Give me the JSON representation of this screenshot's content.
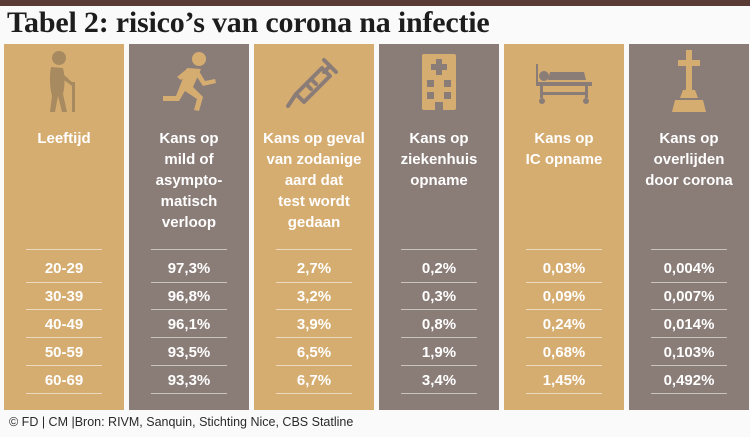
{
  "title": "Tabel 2: risico’s van corona na infectie",
  "source": "© FD | CM |Bron: RIVM, Sanquin, Stichting Nice, CBS Statline",
  "colors": {
    "gold": "#d6ad71",
    "grey": "#8a7c77",
    "top_bar": "#5a3a35"
  },
  "columns": [
    {
      "icon": "elderly-person-icon",
      "header": "Leeftijd",
      "values": [
        "20-29",
        "30-39",
        "40-49",
        "50-59",
        "60-69"
      ]
    },
    {
      "icon": "running-person-icon",
      "header": "Kans op\nmild of\nasympto-\nmatisch\nverloop",
      "values": [
        "97,3%",
        "96,8%",
        "96,1%",
        "93,5%",
        "93,3%"
      ]
    },
    {
      "icon": "syringe-icon",
      "header": "Kans op geval\nvan zodanige\naard dat\ntest wordt\ngedaan",
      "values": [
        "2,7%",
        "3,2%",
        "3,9%",
        "6,5%",
        "6,7%"
      ]
    },
    {
      "icon": "hospital-icon",
      "header": "Kans op\nziekenhuis\nopname",
      "values": [
        "0,2%",
        "0,3%",
        "0,8%",
        "1,9%",
        "3,4%"
      ]
    },
    {
      "icon": "hospital-bed-icon",
      "header": "Kans op\nIC opname",
      "values": [
        "0,03%",
        "0,09%",
        "0,24%",
        "0,68%",
        "1,45%"
      ]
    },
    {
      "icon": "grave-cross-icon",
      "header": "Kans op\noverlijden\ndoor corona",
      "values": [
        "0,004%",
        "0,007%",
        "0,014%",
        "0,103%",
        "0,492%"
      ]
    }
  ]
}
